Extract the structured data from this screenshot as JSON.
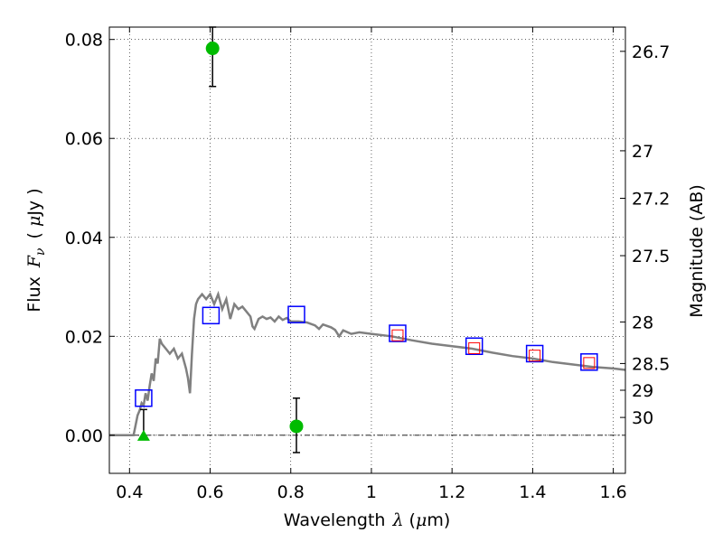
{
  "chart_data": {
    "type": "scatter",
    "xlabel_text": "Wavelength",
    "xlabel_symbol": "λ",
    "xlabel_unit_open": "(",
    "xlabel_unit_mu": "μ",
    "xlabel_unit_rest": "m)",
    "ylabel_text": "Flux",
    "ylabel_symbol": "F",
    "ylabel_sub": "ν",
    "ylabel_unit_open": "(",
    "ylabel_unit_mu": "μ",
    "ylabel_unit_rest": "Jy )",
    "y2label": "Magnitude (AB)",
    "xlim": [
      0.35,
      1.63
    ],
    "ylim": [
      -0.0077,
      0.0825
    ],
    "grid": true,
    "x_ticks": [
      {
        "value": 0.4,
        "label": "0.4"
      },
      {
        "value": 0.6,
        "label": "0.6"
      },
      {
        "value": 0.8,
        "label": "0.8"
      },
      {
        "value": 1.0,
        "label": "1"
      },
      {
        "value": 1.2,
        "label": "1.2"
      },
      {
        "value": 1.4,
        "label": "1.4"
      },
      {
        "value": 1.6,
        "label": "1.6"
      }
    ],
    "y_ticks": [
      {
        "value": 0.0,
        "label": "0.00"
      },
      {
        "value": 0.02,
        "label": "0.02"
      },
      {
        "value": 0.04,
        "label": "0.04"
      },
      {
        "value": 0.06,
        "label": "0.06"
      },
      {
        "value": 0.08,
        "label": "0.08"
      }
    ],
    "y2_ticks": [
      {
        "flux": 0.0776,
        "label": "26.7"
      },
      {
        "flux": 0.0575,
        "label": "27"
      },
      {
        "flux": 0.0479,
        "label": "27.2"
      },
      {
        "flux": 0.0363,
        "label": "27.5"
      },
      {
        "flux": 0.0229,
        "label": "28"
      },
      {
        "flux": 0.0145,
        "label": "28.5"
      },
      {
        "flux": 0.0091,
        "label": "29"
      },
      {
        "flux": 0.0036,
        "label": "30"
      }
    ],
    "sed_model": {
      "color": "#808080",
      "points": [
        [
          0.35,
          0.0
        ],
        [
          0.4,
          0.0
        ],
        [
          0.41,
          0.0
        ],
        [
          0.415,
          0.002
        ],
        [
          0.42,
          0.004
        ],
        [
          0.425,
          0.005
        ],
        [
          0.43,
          0.0065
        ],
        [
          0.435,
          0.006
        ],
        [
          0.44,
          0.0085
        ],
        [
          0.445,
          0.007
        ],
        [
          0.45,
          0.01
        ],
        [
          0.455,
          0.0125
        ],
        [
          0.46,
          0.011
        ],
        [
          0.465,
          0.0155
        ],
        [
          0.47,
          0.0145
        ],
        [
          0.475,
          0.0195
        ],
        [
          0.48,
          0.0185
        ],
        [
          0.49,
          0.0175
        ],
        [
          0.5,
          0.0165
        ],
        [
          0.51,
          0.0175
        ],
        [
          0.52,
          0.0155
        ],
        [
          0.53,
          0.0165
        ],
        [
          0.54,
          0.0135
        ],
        [
          0.545,
          0.0115
        ],
        [
          0.55,
          0.0085
        ],
        [
          0.555,
          0.0165
        ],
        [
          0.56,
          0.0235
        ],
        [
          0.565,
          0.0265
        ],
        [
          0.57,
          0.0275
        ],
        [
          0.58,
          0.0285
        ],
        [
          0.59,
          0.0275
        ],
        [
          0.6,
          0.0285
        ],
        [
          0.61,
          0.0265
        ],
        [
          0.62,
          0.0285
        ],
        [
          0.63,
          0.0255
        ],
        [
          0.64,
          0.0275
        ],
        [
          0.65,
          0.0235
        ],
        [
          0.66,
          0.0265
        ],
        [
          0.67,
          0.0255
        ],
        [
          0.68,
          0.026
        ],
        [
          0.69,
          0.025
        ],
        [
          0.7,
          0.024
        ],
        [
          0.705,
          0.022
        ],
        [
          0.71,
          0.0215
        ],
        [
          0.72,
          0.0235
        ],
        [
          0.73,
          0.024
        ],
        [
          0.74,
          0.0235
        ],
        [
          0.75,
          0.0238
        ],
        [
          0.76,
          0.023
        ],
        [
          0.77,
          0.024
        ],
        [
          0.78,
          0.0233
        ],
        [
          0.79,
          0.0237
        ],
        [
          0.8,
          0.023
        ],
        [
          0.82,
          0.023
        ],
        [
          0.84,
          0.0228
        ],
        [
          0.86,
          0.0222
        ],
        [
          0.87,
          0.0215
        ],
        [
          0.88,
          0.0224
        ],
        [
          0.9,
          0.0218
        ],
        [
          0.91,
          0.0213
        ],
        [
          0.92,
          0.02
        ],
        [
          0.93,
          0.0212
        ],
        [
          0.95,
          0.0205
        ],
        [
          0.97,
          0.0208
        ],
        [
          1.0,
          0.0205
        ],
        [
          1.05,
          0.02
        ],
        [
          1.1,
          0.0192
        ],
        [
          1.15,
          0.0185
        ],
        [
          1.2,
          0.018
        ],
        [
          1.25,
          0.0175
        ],
        [
          1.3,
          0.0167
        ],
        [
          1.35,
          0.016
        ],
        [
          1.4,
          0.0155
        ],
        [
          1.45,
          0.0148
        ],
        [
          1.5,
          0.0143
        ],
        [
          1.55,
          0.0138
        ],
        [
          1.6,
          0.0135
        ],
        [
          1.63,
          0.0132
        ]
      ]
    },
    "model_photometry": {
      "color": "#0000ff",
      "points": [
        [
          0.435,
          0.0075
        ],
        [
          0.602,
          0.0242
        ],
        [
          0.814,
          0.0244
        ],
        [
          1.065,
          0.0206
        ],
        [
          1.255,
          0.018
        ],
        [
          1.405,
          0.0165
        ],
        [
          1.54,
          0.0148
        ]
      ]
    },
    "observed_points": {
      "color": "#ff0000",
      "points": [
        [
          1.065,
          0.0202
        ],
        [
          1.255,
          0.0176
        ],
        [
          1.405,
          0.0161
        ],
        [
          1.54,
          0.0146
        ]
      ]
    },
    "green_detections": {
      "color": "#00bb00",
      "points": [
        {
          "x": 0.606,
          "y": 0.0782,
          "yerr_low": 0.0705,
          "yerr_high": 0.0825
        },
        {
          "x": 0.814,
          "y": 0.0018,
          "yerr_low": -0.0035,
          "yerr_high": 0.0075
        }
      ]
    },
    "green_upper_limit": {
      "color": "#00bb00",
      "x": 0.435,
      "y": 0.0,
      "yerr_low": 0.0,
      "yerr_high": 0.0052
    }
  }
}
